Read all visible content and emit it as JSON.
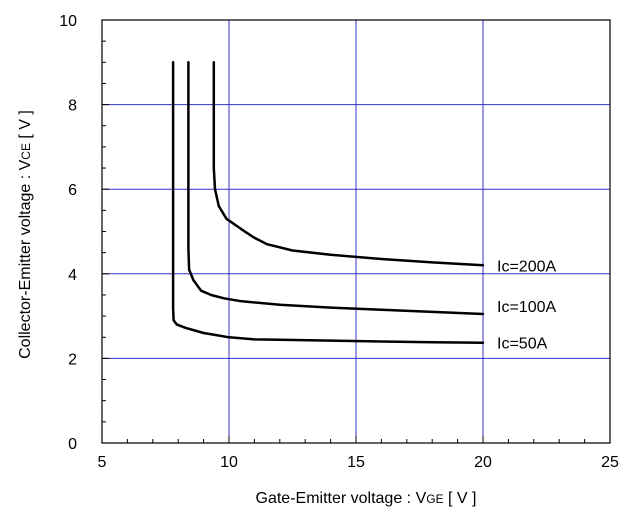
{
  "chart_data": {
    "type": "line",
    "xlabel": {
      "main": "Gate-Emitter voltage : V",
      "sub": "GE",
      "unit": " [ V ]"
    },
    "ylabel": {
      "main": "Collector-Emitter voltage : V",
      "sub": "CE",
      "unit": " [ V ]"
    },
    "xlim": [
      5,
      25
    ],
    "ylim": [
      0,
      10
    ],
    "x_ticks": [
      "5",
      "10",
      "15",
      "20",
      "25"
    ],
    "y_ticks": [
      "0",
      "2",
      "4",
      "6",
      "8",
      "10"
    ],
    "grid": true,
    "colors": {
      "grid": "#3333cc",
      "axis": "#000000",
      "series": "#000000"
    },
    "series": [
      {
        "name": "Ic=50A",
        "points": [
          [
            7.8,
            9.0
          ],
          [
            7.8,
            3.2
          ],
          [
            7.82,
            2.9
          ],
          [
            7.95,
            2.8
          ],
          [
            8.3,
            2.72
          ],
          [
            9.0,
            2.6
          ],
          [
            9.5,
            2.55
          ],
          [
            10.0,
            2.5
          ],
          [
            11.0,
            2.45
          ],
          [
            12.0,
            2.44
          ],
          [
            14.0,
            2.42
          ],
          [
            16.0,
            2.4
          ],
          [
            18.0,
            2.38
          ],
          [
            20.0,
            2.37
          ]
        ]
      },
      {
        "name": "Ic=100A",
        "points": [
          [
            8.4,
            9.0
          ],
          [
            8.4,
            4.6
          ],
          [
            8.43,
            4.1
          ],
          [
            8.6,
            3.85
          ],
          [
            8.9,
            3.6
          ],
          [
            9.3,
            3.5
          ],
          [
            9.8,
            3.42
          ],
          [
            10.5,
            3.35
          ],
          [
            12.0,
            3.27
          ],
          [
            14.0,
            3.2
          ],
          [
            16.0,
            3.15
          ],
          [
            18.0,
            3.1
          ],
          [
            20.0,
            3.05
          ]
        ]
      },
      {
        "name": "Ic=200A",
        "points": [
          [
            9.4,
            9.0
          ],
          [
            9.4,
            6.5
          ],
          [
            9.45,
            6.0
          ],
          [
            9.6,
            5.6
          ],
          [
            9.9,
            5.3
          ],
          [
            10.5,
            5.05
          ],
          [
            11.0,
            4.85
          ],
          [
            11.5,
            4.7
          ],
          [
            12.5,
            4.55
          ],
          [
            14.0,
            4.45
          ],
          [
            16.0,
            4.35
          ],
          [
            18.0,
            4.27
          ],
          [
            20.0,
            4.2
          ]
        ]
      }
    ]
  }
}
